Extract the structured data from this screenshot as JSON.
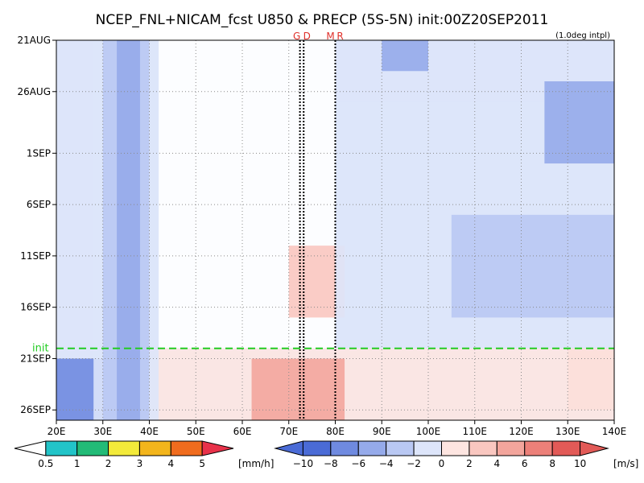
{
  "chart_data": {
    "type": "heatmap",
    "title": "NCEP_FNL+NICAM_fcst U850 & PRECP (5S-5N) init:00Z20SEP2011",
    "note": "(1.0deg intpl)",
    "x_ticks": [
      "20E",
      "30E",
      "40E",
      "50E",
      "60E",
      "70E",
      "80E",
      "90E",
      "100E",
      "110E",
      "120E",
      "130E",
      "140E"
    ],
    "x_tick_values": [
      20,
      30,
      40,
      50,
      60,
      70,
      80,
      90,
      100,
      110,
      120,
      130,
      140
    ],
    "xlim": [
      20,
      140
    ],
    "y_ticks": [
      "21AUG",
      "26AUG",
      "1SEP",
      "6SEP",
      "11SEP",
      "16SEP",
      "21SEP",
      "26SEP"
    ],
    "y_tick_days": [
      0,
      5,
      11,
      16,
      21,
      26,
      31,
      36
    ],
    "ylim_days": [
      0,
      37
    ],
    "y_start_date": "21AUG2011",
    "init_label": "init",
    "init_day": 30,
    "site_labels": [
      {
        "text": "G",
        "lon": 72.4
      },
      {
        "text": "D",
        "lon": 73.2
      },
      {
        "text": "M",
        "lon": 80
      },
      {
        "text": "R",
        "lon": 80
      }
    ],
    "site_lines_lon": [
      72.4,
      73.2,
      80
    ],
    "u850_field": {
      "colors": [
        "#4a6bd6",
        "#6f8ae0",
        "#95aaea",
        "#b9c8f3",
        "#dde5fa",
        "#ffffff",
        "#fde5e1",
        "#f9c7c0",
        "#f3a59c",
        "#ec8079",
        "#e25a57"
      ],
      "bands": [
        {
          "lon_min": 33,
          "lon_max": 38,
          "day_min": 0,
          "day_max": 37,
          "value": -6
        },
        {
          "lon_min": 30,
          "lon_max": 40,
          "day_min": 0,
          "day_max": 37,
          "value": -4
        },
        {
          "lon_min": 28,
          "lon_max": 42,
          "day_min": 0,
          "day_max": 37,
          "value": -2
        },
        {
          "lon_min": 20,
          "lon_max": 40,
          "day_min": 31,
          "day_max": 37,
          "value": -8
        },
        {
          "lon_min": 90,
          "lon_max": 100,
          "day_min": 0,
          "day_max": 3,
          "value": -6
        },
        {
          "lon_min": 125,
          "lon_max": 140,
          "day_min": 4,
          "day_max": 12,
          "value": -6
        },
        {
          "lon_min": 105,
          "lon_max": 140,
          "day_min": 17,
          "day_max": 27,
          "value": -4
        },
        {
          "lon_min": 80,
          "lon_max": 140,
          "day_min": 6,
          "day_max": 30,
          "value": -2
        },
        {
          "lon_min": 70,
          "lon_max": 82,
          "day_min": 20,
          "day_max": 27,
          "value": 4
        },
        {
          "lon_min": 62,
          "lon_max": 82,
          "day_min": 31,
          "day_max": 37,
          "value": 6
        },
        {
          "lon_min": 40,
          "lon_max": 140,
          "day_min": 30,
          "day_max": 37,
          "value": 2
        },
        {
          "lon_min": 130,
          "lon_max": 140,
          "day_min": 30,
          "day_max": 36,
          "value": 6
        },
        {
          "lon_min": 42,
          "lon_max": 80,
          "day_min": 0,
          "day_max": 30,
          "value": 0
        }
      ]
    },
    "colorbar_precip": {
      "labels": [
        "0.5",
        "1",
        "2",
        "3",
        "4",
        "5"
      ],
      "colors": [
        "#ffffff",
        "#22c4c8",
        "#22bb77",
        "#f3ea3a",
        "#f3b51c",
        "#f06c1e",
        "#e8324a"
      ],
      "unit": "[mm/h]"
    },
    "colorbar_wind": {
      "labels": [
        "−10",
        "−8",
        "−6",
        "−4",
        "−2",
        "0",
        "2",
        "4",
        "6",
        "8",
        "10"
      ],
      "colors": [
        "#4a6bd6",
        "#4a6bd6",
        "#6f8ae0",
        "#95aaea",
        "#b9c8f3",
        "#dde5fa",
        "#fde5e1",
        "#f9c7c0",
        "#f3a59c",
        "#ec8079",
        "#e25a57",
        "#e25a57"
      ],
      "unit": "[m/s]"
    },
    "grid": true,
    "grid_style": "dotted"
  }
}
